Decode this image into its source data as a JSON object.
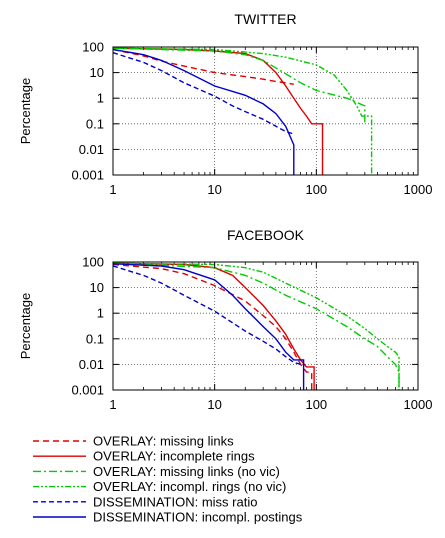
{
  "chart_data": [
    {
      "type": "line",
      "title": "TWITTER",
      "xlabel": "",
      "ylabel": "Percentage",
      "xscale": "log",
      "yscale": "log",
      "xlim": [
        1,
        1000
      ],
      "ylim": [
        0.001,
        100
      ],
      "grid": true,
      "x_ticks": [
        "1",
        "10",
        "100",
        "1000"
      ],
      "y_ticks": [
        "0.001",
        "0.01",
        "0.1",
        "1",
        "10",
        "100"
      ],
      "series": [
        {
          "name": "OVERLAY: missing links",
          "x": [
            1,
            2,
            3,
            5,
            10,
            20,
            30,
            40,
            50,
            60
          ],
          "y": [
            80,
            45,
            28,
            18,
            10,
            7,
            5.5,
            4.5,
            4,
            3.5
          ]
        },
        {
          "name": "OVERLAY: incomplete rings",
          "x": [
            1,
            5,
            10,
            20,
            30,
            40,
            50,
            60,
            70,
            80,
            90,
            100,
            115,
            115
          ],
          "y": [
            90,
            80,
            70,
            55,
            30,
            10,
            3,
            1,
            0.4,
            0.2,
            0.1,
            0.1,
            0.1,
            0.001
          ]
        },
        {
          "name": "OVERLAY: missing links (no vic)",
          "x": [
            1,
            10,
            20,
            30,
            50,
            70,
            100,
            200,
            300,
            300
          ],
          "y": [
            90,
            70,
            50,
            30,
            9,
            4,
            2,
            1,
            0.5,
            0.1
          ]
        },
        {
          "name": "OVERLAY: incompl. rings (no vic)",
          "x": [
            1,
            10,
            30,
            50,
            100,
            150,
            200,
            250,
            280,
            350,
            350
          ],
          "y": [
            90,
            80,
            55,
            40,
            20,
            8,
            2,
            0.5,
            0.2,
            0.2,
            0.001
          ]
        },
        {
          "name": "DISSEMINATION: miss ratio",
          "x": [
            1,
            2,
            3,
            5,
            10,
            15,
            20,
            30,
            40,
            50,
            60
          ],
          "y": [
            60,
            25,
            12,
            4,
            1.2,
            0.5,
            0.3,
            0.15,
            0.08,
            0.05,
            0.04
          ]
        },
        {
          "name": "DISSEMINATION: incompl. postings",
          "x": [
            1,
            2,
            3,
            5,
            10,
            20,
            30,
            40,
            50,
            60,
            60
          ],
          "y": [
            80,
            50,
            30,
            12,
            3,
            1.3,
            0.6,
            0.25,
            0.08,
            0.015,
            0.001
          ]
        }
      ]
    },
    {
      "type": "line",
      "title": "FACEBOOK",
      "xlabel": "",
      "ylabel": "Percentage",
      "xscale": "log",
      "yscale": "log",
      "xlim": [
        1,
        1000
      ],
      "ylim": [
        0.001,
        100
      ],
      "grid": true,
      "x_ticks": [
        "1",
        "10",
        "100",
        "1000"
      ],
      "y_ticks": [
        "0.001",
        "0.01",
        "0.1",
        "1",
        "10",
        "100"
      ],
      "series": [
        {
          "name": "OVERLAY: missing links",
          "x": [
            1,
            3,
            5,
            10,
            20,
            30,
            40,
            50,
            60,
            70,
            80,
            90,
            90
          ],
          "y": [
            80,
            55,
            35,
            12,
            3,
            0.8,
            0.3,
            0.1,
            0.03,
            0.01,
            0.005,
            0.005,
            0.001
          ]
        },
        {
          "name": "OVERLAY: incomplete rings",
          "x": [
            1,
            5,
            10,
            15,
            20,
            30,
            40,
            50,
            60,
            70,
            80,
            90,
            95,
            95
          ],
          "y": [
            90,
            80,
            60,
            30,
            10,
            2,
            0.5,
            0.15,
            0.04,
            0.015,
            0.008,
            0.008,
            0.008,
            0.001
          ]
        },
        {
          "name": "OVERLAY: missing links (no vic)",
          "x": [
            1,
            10,
            20,
            30,
            50,
            100,
            200,
            300,
            400,
            500,
            600,
            650,
            650
          ],
          "y": [
            90,
            60,
            30,
            15,
            5,
            1.5,
            0.3,
            0.1,
            0.05,
            0.02,
            0.01,
            0.005,
            0.001
          ]
        },
        {
          "name": "OVERLAY: incompl. rings (no vic)",
          "x": [
            1,
            10,
            20,
            30,
            50,
            100,
            200,
            300,
            400,
            500,
            600,
            650,
            650
          ],
          "y": [
            90,
            80,
            60,
            40,
            15,
            4,
            0.8,
            0.25,
            0.1,
            0.05,
            0.03,
            0.02,
            0.001
          ]
        },
        {
          "name": "DISSEMINATION: miss ratio",
          "x": [
            1,
            2,
            3,
            5,
            10,
            20,
            30,
            40,
            50,
            60,
            70
          ],
          "y": [
            70,
            30,
            15,
            5,
            1.2,
            0.2,
            0.08,
            0.04,
            0.02,
            0.012,
            0.01
          ]
        },
        {
          "name": "DISSEMINATION: incompl. postings",
          "x": [
            1,
            3,
            5,
            10,
            15,
            20,
            30,
            40,
            50,
            60,
            70,
            75,
            75
          ],
          "y": [
            85,
            70,
            50,
            20,
            5,
            1.5,
            0.3,
            0.1,
            0.03,
            0.015,
            0.015,
            0.015,
            0.001
          ]
        }
      ]
    }
  ],
  "styles": [
    {
      "color": "#e00000",
      "dash": "6,4"
    },
    {
      "color": "#e00000",
      "dash": ""
    },
    {
      "color": "#00cc00",
      "dash": "8,3,2,3"
    },
    {
      "color": "#00cc00",
      "dash": "6,2,2,2,2,2"
    },
    {
      "color": "#0000cc",
      "dash": "5,3"
    },
    {
      "color": "#0000cc",
      "dash": ""
    }
  ]
}
